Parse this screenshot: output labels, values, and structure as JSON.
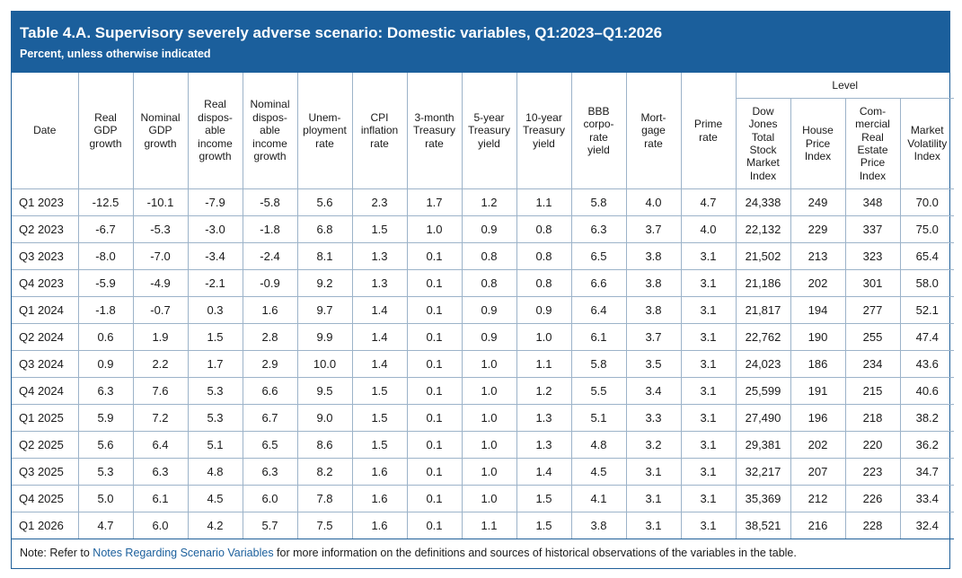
{
  "table": {
    "title": "Table 4.A. Supervisory severely adverse scenario: Domestic variables, Q1:2023–Q1:2026",
    "subtitle": "Percent, unless otherwise indicated",
    "group_header": "Level",
    "columns": [
      [
        "Date"
      ],
      [
        "Real",
        "GDP",
        "growth"
      ],
      [
        "Nominal",
        "GDP",
        "growth"
      ],
      [
        "Real",
        "dispos-",
        "able",
        "income",
        "growth"
      ],
      [
        "Nominal",
        "dispos-",
        "able",
        "income",
        "growth"
      ],
      [
        "Unem-",
        "ployment",
        "rate"
      ],
      [
        "CPI",
        "inflation",
        "rate"
      ],
      [
        "3-month",
        "Treasury",
        "rate"
      ],
      [
        "5-year",
        "Treasury",
        "yield"
      ],
      [
        "10-year",
        "Treasury",
        "yield"
      ],
      [
        "BBB",
        "corpo-",
        "rate",
        "yield"
      ],
      [
        "Mort-",
        "gage",
        "rate"
      ],
      [
        "Prime",
        "rate"
      ],
      [
        "Dow Jones",
        "Total",
        "Stock",
        "Market",
        "Index"
      ],
      [
        "House",
        "Price",
        "Index"
      ],
      [
        "Com-",
        "mercial",
        "Real",
        "Estate",
        "Price",
        "Index"
      ],
      [
        "Market",
        "Volatility",
        "Index"
      ]
    ],
    "rows": [
      [
        "Q1 2023",
        "-12.5",
        "-10.1",
        "-7.9",
        "-5.8",
        "5.6",
        "2.3",
        "1.7",
        "1.2",
        "1.1",
        "5.8",
        "4.0",
        "4.7",
        "24,338",
        "249",
        "348",
        "70.0"
      ],
      [
        "Q2 2023",
        "-6.7",
        "-5.3",
        "-3.0",
        "-1.8",
        "6.8",
        "1.5",
        "1.0",
        "0.9",
        "0.8",
        "6.3",
        "3.7",
        "4.0",
        "22,132",
        "229",
        "337",
        "75.0"
      ],
      [
        "Q3 2023",
        "-8.0",
        "-7.0",
        "-3.4",
        "-2.4",
        "8.1",
        "1.3",
        "0.1",
        "0.8",
        "0.8",
        "6.5",
        "3.8",
        "3.1",
        "21,502",
        "213",
        "323",
        "65.4"
      ],
      [
        "Q4 2023",
        "-5.9",
        "-4.9",
        "-2.1",
        "-0.9",
        "9.2",
        "1.3",
        "0.1",
        "0.8",
        "0.8",
        "6.6",
        "3.8",
        "3.1",
        "21,186",
        "202",
        "301",
        "58.0"
      ],
      [
        "Q1 2024",
        "-1.8",
        "-0.7",
        "0.3",
        "1.6",
        "9.7",
        "1.4",
        "0.1",
        "0.9",
        "0.9",
        "6.4",
        "3.8",
        "3.1",
        "21,817",
        "194",
        "277",
        "52.1"
      ],
      [
        "Q2 2024",
        "0.6",
        "1.9",
        "1.5",
        "2.8",
        "9.9",
        "1.4",
        "0.1",
        "0.9",
        "1.0",
        "6.1",
        "3.7",
        "3.1",
        "22,762",
        "190",
        "255",
        "47.4"
      ],
      [
        "Q3 2024",
        "0.9",
        "2.2",
        "1.7",
        "2.9",
        "10.0",
        "1.4",
        "0.1",
        "1.0",
        "1.1",
        "5.8",
        "3.5",
        "3.1",
        "24,023",
        "186",
        "234",
        "43.6"
      ],
      [
        "Q4 2024",
        "6.3",
        "7.6",
        "5.3",
        "6.6",
        "9.5",
        "1.5",
        "0.1",
        "1.0",
        "1.2",
        "5.5",
        "3.4",
        "3.1",
        "25,599",
        "191",
        "215",
        "40.6"
      ],
      [
        "Q1 2025",
        "5.9",
        "7.2",
        "5.3",
        "6.7",
        "9.0",
        "1.5",
        "0.1",
        "1.0",
        "1.3",
        "5.1",
        "3.3",
        "3.1",
        "27,490",
        "196",
        "218",
        "38.2"
      ],
      [
        "Q2 2025",
        "5.6",
        "6.4",
        "5.1",
        "6.5",
        "8.6",
        "1.5",
        "0.1",
        "1.0",
        "1.3",
        "4.8",
        "3.2",
        "3.1",
        "29,381",
        "202",
        "220",
        "36.2"
      ],
      [
        "Q3 2025",
        "5.3",
        "6.3",
        "4.8",
        "6.3",
        "8.2",
        "1.6",
        "0.1",
        "1.0",
        "1.4",
        "4.5",
        "3.1",
        "3.1",
        "32,217",
        "207",
        "223",
        "34.7"
      ],
      [
        "Q4 2025",
        "5.0",
        "6.1",
        "4.5",
        "6.0",
        "7.8",
        "1.6",
        "0.1",
        "1.0",
        "1.5",
        "4.1",
        "3.1",
        "3.1",
        "35,369",
        "212",
        "226",
        "33.4"
      ],
      [
        "Q1 2026",
        "4.7",
        "6.0",
        "4.2",
        "5.7",
        "7.5",
        "1.6",
        "0.1",
        "1.1",
        "1.5",
        "3.8",
        "3.1",
        "3.1",
        "38,521",
        "216",
        "228",
        "32.4"
      ]
    ]
  },
  "note": {
    "prefix": "Note: Refer to ",
    "link": "Notes Regarding Scenario Variables",
    "suffix": " for more information on the definitions and sources of historical observations of the variables in the table."
  }
}
